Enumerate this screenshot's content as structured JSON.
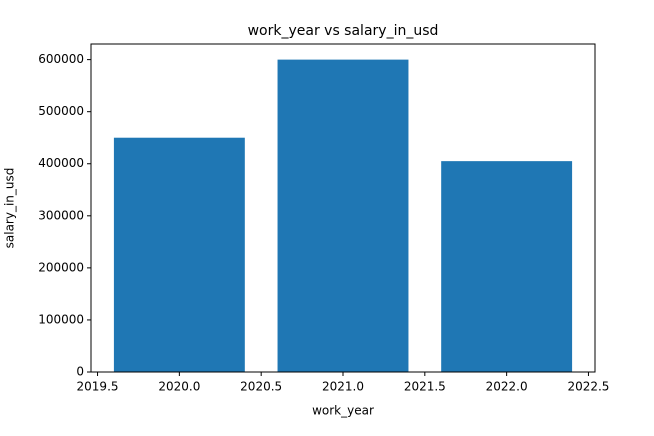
{
  "chart_data": {
    "type": "bar",
    "title": "work_year vs  salary_in_usd",
    "x_label": "work_year",
    "y_label": "salary_in_usd",
    "x": [
      2020,
      2021,
      2022
    ],
    "values": [
      450000,
      600000,
      405000
    ],
    "color": "#1f77b4",
    "bar_width": 0.8,
    "xlim": [
      2019.46,
      2022.54
    ],
    "xticks": [
      2019.5,
      {
        "value": 2020,
        "label": "2020.0"
      },
      2020.5,
      {
        "value": 2021,
        "label": "2021.0"
      },
      2021.5,
      {
        "value": 2022,
        "label": "2022.0"
      },
      2022.5
    ],
    "ylim": [
      0,
      630000
    ],
    "yticks": [
      0,
      100000,
      200000,
      300000,
      400000,
      500000,
      600000
    ]
  }
}
